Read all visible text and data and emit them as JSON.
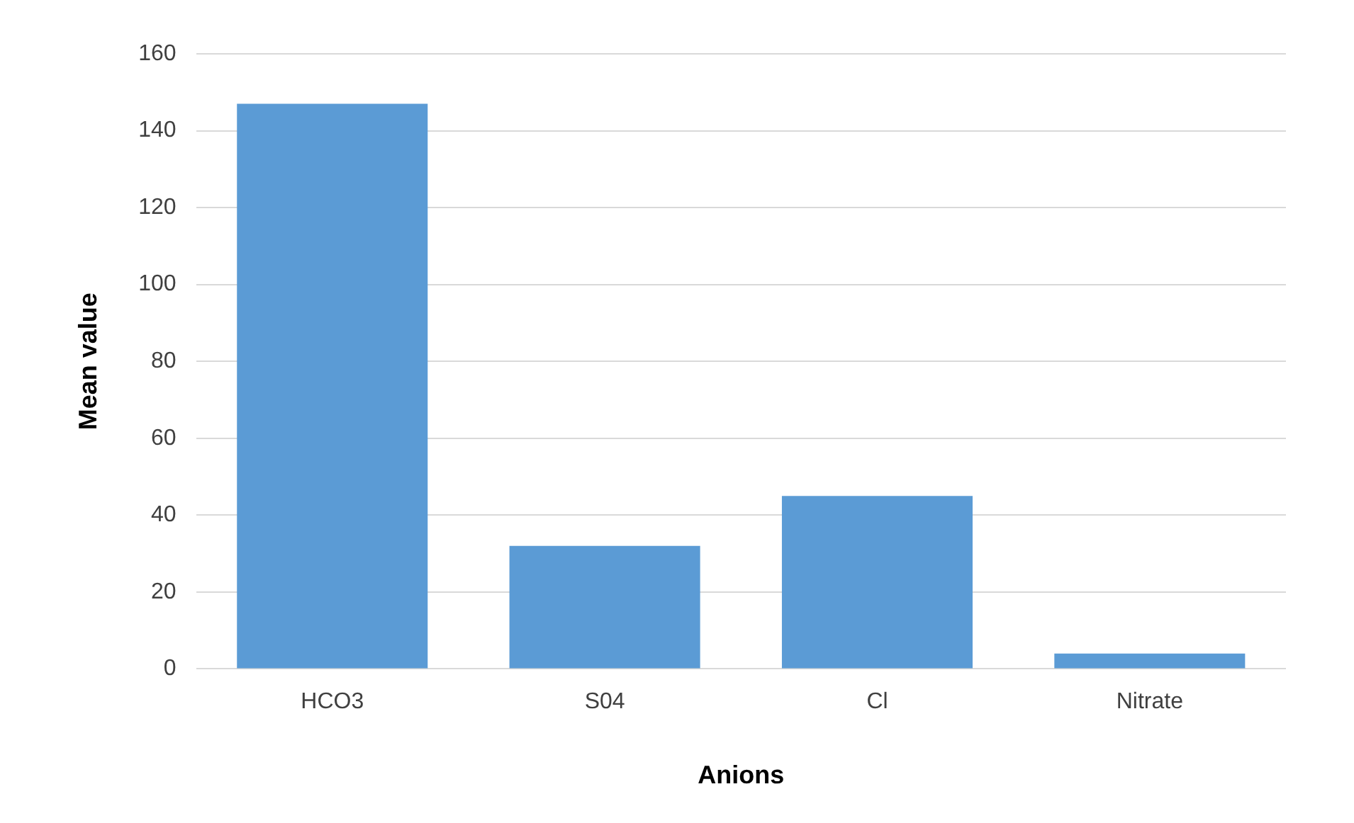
{
  "chart_data": {
    "type": "bar",
    "xlabel": "Anions",
    "ylabel": "Mean value",
    "categories": [
      "HCO3",
      "S04",
      "Cl",
      "Nitrate"
    ],
    "values": [
      147,
      32,
      45,
      4
    ],
    "color": "#5b9bd5",
    "ylim": [
      0,
      160
    ],
    "yticks": [
      0,
      20,
      40,
      60,
      80,
      100,
      120,
      140,
      160
    ],
    "grid": "y",
    "legend": false
  }
}
